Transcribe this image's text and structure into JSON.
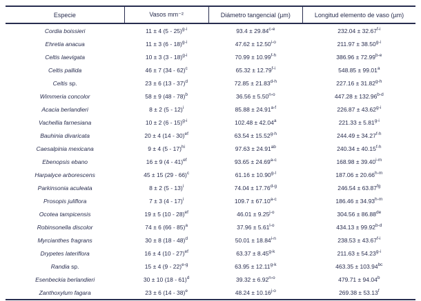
{
  "colors": {
    "text": "#272c4e",
    "line": "#272c4e",
    "background": "#ffffff"
  },
  "table": {
    "columns": [
      {
        "label": "Especie"
      },
      {
        "label": "Vasos mm⁻²"
      },
      {
        "label": "Diámetro tangencial (µm)"
      },
      {
        "label": "Longitud elemento de vaso (µm)"
      }
    ],
    "rows": [
      {
        "especie": "Cordia boissieri",
        "sufijo": "",
        "vasos": "11 ± 4 (5 - 25)",
        "vasos_sup": "g-i",
        "diametro": "93.4 ± 29.84",
        "diametro_sup": "c-e",
        "longitud": "232.04 ± 32.67",
        "longitud_sup": "f-i"
      },
      {
        "especie": "Ehretia anacua",
        "sufijo": "",
        "vasos": "11 ± 3 (6 - 18)",
        "vasos_sup": "g-i",
        "diametro": "47.62 ± 12.50",
        "diametro_sup": "i-o",
        "longitud": "211.97 ± 38.50",
        "longitud_sup": "g-i"
      },
      {
        "especie": "Celtis laevigata",
        "sufijo": "",
        "vasos": "10 ± 3 (3 - 18)",
        "vasos_sup": "g-i",
        "diametro": "70.99 ± 10.99",
        "diametro_sup": "f-h",
        "longitud": "386.96 ± 72.99",
        "longitud_sup": "b-e"
      },
      {
        "especie": "Celtis pallida",
        "sufijo": "",
        "vasos": "46 ± 7 (34 - 62)",
        "vasos_sup": "c",
        "diametro": "65.32 ± 12.79",
        "diametro_sup": "f-i",
        "longitud": "548.85 ± 99.01",
        "longitud_sup": "a"
      },
      {
        "especie": "Celtis",
        "sufijo": " sp.",
        "vasos": "23 ± 6 (13 - 37)",
        "vasos_sup": "d",
        "diametro": "72.85 ± 21.83",
        "diametro_sup": "d-h",
        "longitud": "227.16 ± 31.82",
        "longitud_sup": "g-h"
      },
      {
        "especie": "Wimmeria concolor",
        "sufijo": "",
        "vasos": "58 ± 9 (48 - 78)",
        "vasos_sup": "b",
        "diametro": "36.56 ± 5.50",
        "diametro_sup": "n-o",
        "longitud": "447.28 ± 132.96",
        "longitud_sup": "b-d"
      },
      {
        "especie": "Acacia berlandieri",
        "sufijo": "",
        "vasos": "8 ± 2 (5 - 12)",
        "vasos_sup": "i",
        "diametro": "85.88 ± 24.91",
        "diametro_sup": "a-f",
        "longitud": "226.87 ± 43.62",
        "longitud_sup": "g-i"
      },
      {
        "especie": "Vachellia farnesiana",
        "sufijo": "",
        "vasos": "10 ± 2 (6 - 15)",
        "vasos_sup": "g-i",
        "diametro": "102.48 ± 42.04",
        "diametro_sup": "a",
        "longitud": "221.33 ± 5.81",
        "longitud_sup": "g-i"
      },
      {
        "especie": "Bauhinia divaricata",
        "sufijo": "",
        "vasos": "20 ± 4 (14 - 30)",
        "vasos_sup": "ef",
        "diametro": "63.54 ± 15.52",
        "diametro_sup": "g-h",
        "longlongitud": "",
        "longitud": "244.49 ±  34.27",
        "longitud_sup": "f-h"
      },
      {
        "especie": "Caesalpinia mexicana",
        "sufijo": "",
        "vasos": "9 ± 4 (5 - 17)",
        "vasos_sup": "hi",
        "diametro": "97.63 ± 24.91",
        "diametro_sup": "ab",
        "longitud": "240.34 ±  40.15",
        "longitud_sup": "f-h"
      },
      {
        "especie": "Ebenopsis ebano",
        "sufijo": "",
        "vasos": "16 ± 9  (4 - 41)",
        "vasos_sup": "ef",
        "diametro": "93.65  ± 24.69",
        "diametro_sup": "a-c",
        "longitud": "168.98 ± 39.40",
        "longitud_sup": "i-m"
      },
      {
        "especie": "Harpalyce arborescens",
        "sufijo": "",
        "vasos": "45 ± 15 (29 - 66)",
        "vasos_sup": "c",
        "diametro": "61.16 ± 10.90",
        "diametro_sup": "g-l",
        "longitud": "187.06 ± 20.66",
        "longitud_sup": "h-m"
      },
      {
        "especie": "Parkinsonia aculeata",
        "sufijo": "",
        "vasos": "8 ± 2 (5 - 13)",
        "vasos_sup": "i",
        "diametro": "74.04 ± 17.76",
        "diametro_sup": "d-g",
        "longitud": "246.54 ± 63.87",
        "longitud_sup": "fg"
      },
      {
        "especie": "Prosopis juliflora",
        "sufijo": "",
        "vasos": "7 ± 3 (4 - 17)",
        "vasos_sup": "i",
        "diametro": "109.7 ±  67.10",
        "diametro_sup": "a-c",
        "longitud": "186.46 ± 34.93",
        "longitud_sup": "h-m"
      },
      {
        "especie": "Ocotea tampicensis",
        "sufijo": "",
        "vasos": "19 ± 5 (10 - 28)",
        "vasos_sup": "ef",
        "diametro": "46.01 ±  9.25",
        "diametro_sup": "j-o",
        "longitud": "304.56 ± 86.88",
        "longitud_sup": "de"
      },
      {
        "especie": "Robinsonella discolor",
        "sufijo": "",
        "vasos": "74 ± 6 (66 - 85)",
        "vasos_sup": "a",
        "diametro": "37.96 ± 5.61",
        "diametro_sup": "l-o",
        "longitud": "434.13 ± 99.92",
        "longitud_sup": "b-d"
      },
      {
        "especie": "Myrcianthes fragrans",
        "sufijo": "",
        "vasos": "30 ± 8 (18 - 48)",
        "vasos_sup": "d",
        "diametro": "50.01 ± 18.84",
        "diametro_sup": "i-n",
        "longitud": "238.53 ± 43.67",
        "longitud_sup": "f-i"
      },
      {
        "especie": "Drypetes lateriflora",
        "sufijo": "",
        "vasos": "16 ± 4 (10 - 27)",
        "vasos_sup": "ef",
        "diametro": "63.37 ± 8.45",
        "diametro_sup": "g-k",
        "longitud": "211.63 ± 54.23",
        "longitud_sup": "g-i"
      },
      {
        "especie": "Randia",
        "sufijo": " sp.",
        "vasos": "15 ± 4 (9 - 22)",
        "vasos_sup": "e-g",
        "diametro": "63.95 ± 12.11",
        "diametro_sup": "g-k",
        "longitud": "463.35 ± 103.94",
        "longitud_sup": "bc"
      },
      {
        "especie": "Esenbeckia berlandieri",
        "sufijo": "",
        "vasos": "30 ± 10 (18 - 61)",
        "vasos_sup": "d",
        "diametro": "39.32 ± 6.92",
        "diametro_sup": "n-o",
        "longitud": "479.71 ± 94.04",
        "longitud_sup": "b"
      },
      {
        "especie": "Zanthoxylum fagara",
        "sufijo": "",
        "vasos": "23 ± 6 (14 - 38)",
        "vasos_sup": "e",
        "diametro": "48.24 ± 10.16",
        "diametro_sup": "j-o",
        "longitud": "269.38 ± 53.13",
        "longitud_sup": "f"
      }
    ]
  }
}
